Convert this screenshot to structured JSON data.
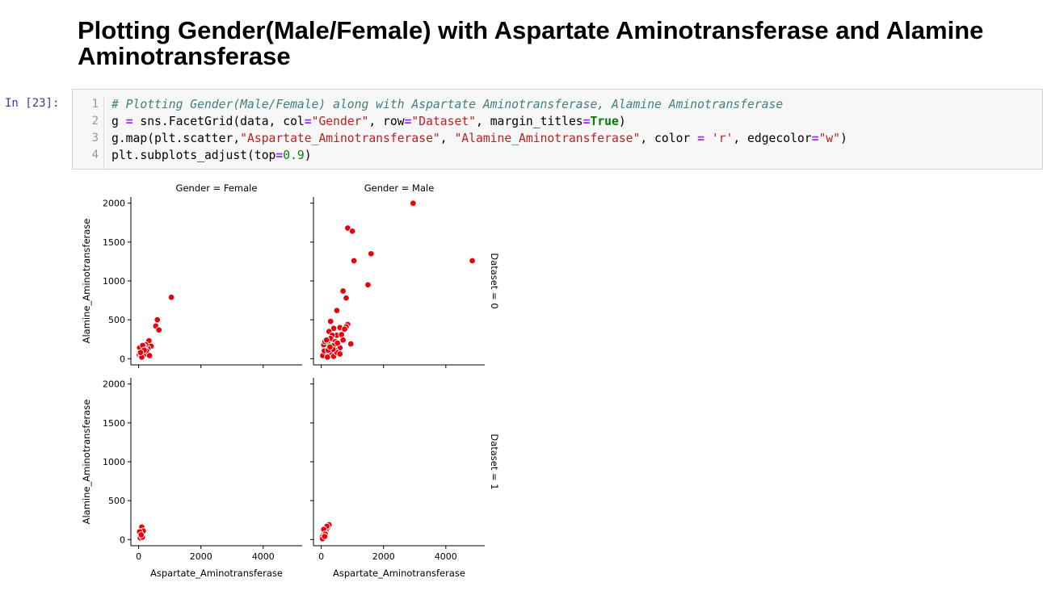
{
  "heading": "Plotting Gender(Male/Female) with Aspartate Aminotransferase and Alamine Aminotransferase",
  "cell": {
    "prompt": "In [23]:",
    "line_numbers": [
      "1",
      "2",
      "3",
      "4"
    ],
    "lines": [
      [
        {
          "t": "# Plotting Gender(Male/Female) along with Aspartate Aminotransferase, Alamine Aminotransferase",
          "c": "cm"
        }
      ],
      [
        {
          "t": "g ",
          "c": ""
        },
        {
          "t": "=",
          "c": "op"
        },
        {
          "t": " sns.FacetGrid(data, col",
          "c": ""
        },
        {
          "t": "=",
          "c": "op"
        },
        {
          "t": "\"Gender\"",
          "c": "st"
        },
        {
          "t": ", row",
          "c": ""
        },
        {
          "t": "=",
          "c": "op"
        },
        {
          "t": "\"Dataset\"",
          "c": "st"
        },
        {
          "t": ", margin_titles",
          "c": ""
        },
        {
          "t": "=",
          "c": "op"
        },
        {
          "t": "True",
          "c": "kw"
        },
        {
          "t": ")",
          "c": ""
        }
      ],
      [
        {
          "t": "g.map(plt.scatter,",
          "c": ""
        },
        {
          "t": "\"Aspartate_Aminotransferase\"",
          "c": "st"
        },
        {
          "t": ", ",
          "c": ""
        },
        {
          "t": "\"Alamine_Aminotransferase\"",
          "c": "st"
        },
        {
          "t": ", color ",
          "c": ""
        },
        {
          "t": "=",
          "c": "op"
        },
        {
          "t": " ",
          "c": ""
        },
        {
          "t": "'r'",
          "c": "st"
        },
        {
          "t": ", edgecolor",
          "c": ""
        },
        {
          "t": "=",
          "c": "op"
        },
        {
          "t": "\"w\"",
          "c": "st"
        },
        {
          "t": ")",
          "c": ""
        }
      ],
      [
        {
          "t": "plt.subplots_adjust(top",
          "c": ""
        },
        {
          "t": "=",
          "c": "op"
        },
        {
          "t": "0.9",
          "c": "nm"
        },
        {
          "t": ")",
          "c": ""
        }
      ]
    ]
  },
  "chart_data": {
    "type": "scatter",
    "facet_cols": [
      "Gender = Female",
      "Gender = Male"
    ],
    "facet_rows": [
      "Dataset = 0",
      "Dataset = 1"
    ],
    "xlabel": "Aspartate_Aminotransferase",
    "ylabel": "Alamine_Aminotransferase",
    "xlim": [
      -250,
      5250
    ],
    "ylim": [
      -80,
      2080
    ],
    "xticks": [
      0,
      2000,
      4000
    ],
    "yticks": [
      0,
      500,
      1000,
      1500,
      2000
    ],
    "marker_color": "#e8000b",
    "edge_color": "#ffffff",
    "panels": [
      {
        "row": 0,
        "col": 0,
        "points": [
          [
            1050,
            790
          ],
          [
            600,
            500
          ],
          [
            550,
            420
          ],
          [
            650,
            370
          ],
          [
            330,
            230
          ],
          [
            400,
            160
          ],
          [
            300,
            130
          ],
          [
            230,
            180
          ],
          [
            170,
            160
          ],
          [
            120,
            130
          ],
          [
            90,
            150
          ],
          [
            60,
            110
          ],
          [
            40,
            70
          ],
          [
            30,
            140
          ],
          [
            20,
            50
          ],
          [
            80,
            40
          ],
          [
            150,
            90
          ],
          [
            200,
            60
          ],
          [
            250,
            100
          ],
          [
            350,
            40
          ],
          [
            100,
            20
          ],
          [
            130,
            170
          ],
          [
            180,
            110
          ],
          [
            60,
            80
          ]
        ]
      },
      {
        "row": 0,
        "col": 1,
        "points": [
          [
            2950,
            2000
          ],
          [
            850,
            1680
          ],
          [
            1000,
            1640
          ],
          [
            1600,
            1350
          ],
          [
            1050,
            1260
          ],
          [
            4850,
            1260
          ],
          [
            1500,
            950
          ],
          [
            700,
            870
          ],
          [
            800,
            780
          ],
          [
            500,
            620
          ],
          [
            850,
            440
          ],
          [
            300,
            480
          ],
          [
            800,
            410
          ],
          [
            600,
            400
          ],
          [
            400,
            390
          ],
          [
            250,
            350
          ],
          [
            500,
            300
          ],
          [
            650,
            310
          ],
          [
            350,
            300
          ],
          [
            200,
            200
          ],
          [
            300,
            260
          ],
          [
            450,
            220
          ],
          [
            550,
            150
          ],
          [
            950,
            190
          ],
          [
            600,
            140
          ],
          [
            400,
            170
          ],
          [
            150,
            180
          ],
          [
            250,
            130
          ],
          [
            350,
            100
          ],
          [
            100,
            150
          ],
          [
            200,
            80
          ],
          [
            300,
            60
          ],
          [
            450,
            110
          ],
          [
            150,
            50
          ],
          [
            50,
            40
          ],
          [
            100,
            100
          ],
          [
            200,
            20
          ],
          [
            400,
            30
          ],
          [
            500,
            80
          ],
          [
            80,
            180
          ],
          [
            120,
            220
          ],
          [
            600,
            60
          ],
          [
            700,
            240
          ],
          [
            750,
            380
          ],
          [
            380,
            120
          ],
          [
            220,
            110
          ],
          [
            170,
            240
          ],
          [
            280,
            150
          ],
          [
            520,
            200
          ]
        ]
      },
      {
        "row": 1,
        "col": 0,
        "points": [
          [
            100,
            160
          ],
          [
            150,
            110
          ],
          [
            30,
            100
          ],
          [
            50,
            20
          ],
          [
            120,
            30
          ],
          [
            80,
            60
          ]
        ]
      },
      {
        "row": 1,
        "col": 1,
        "points": [
          [
            250,
            190
          ],
          [
            200,
            150
          ],
          [
            150,
            120
          ],
          [
            100,
            100
          ],
          [
            70,
            60
          ],
          [
            30,
            30
          ],
          [
            180,
            170
          ],
          [
            80,
            130
          ],
          [
            130,
            70
          ],
          [
            40,
            10
          ],
          [
            110,
            40
          ]
        ]
      }
    ]
  }
}
